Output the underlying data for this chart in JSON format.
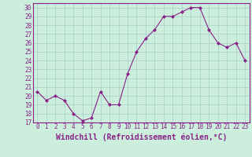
{
  "x": [
    0,
    1,
    2,
    3,
    4,
    5,
    6,
    7,
    8,
    9,
    10,
    11,
    12,
    13,
    14,
    15,
    16,
    17,
    18,
    19,
    20,
    21,
    22,
    23
  ],
  "y": [
    20.5,
    19.5,
    20.0,
    19.5,
    18.0,
    17.2,
    17.5,
    20.5,
    19.0,
    19.0,
    22.5,
    25.0,
    26.5,
    27.5,
    29.0,
    29.0,
    29.5,
    30.0,
    30.0,
    27.5,
    26.0,
    25.5,
    26.0,
    24.0
  ],
  "xlim": [
    -0.5,
    23.5
  ],
  "ylim": [
    17,
    30.5
  ],
  "yticks": [
    17,
    18,
    19,
    20,
    21,
    22,
    23,
    24,
    25,
    26,
    27,
    28,
    29,
    30
  ],
  "xticks": [
    0,
    1,
    2,
    3,
    4,
    5,
    6,
    7,
    8,
    9,
    10,
    11,
    12,
    13,
    14,
    15,
    16,
    17,
    18,
    19,
    20,
    21,
    22,
    23
  ],
  "xlabel": "Windchill (Refroidissement éolien,°C)",
  "line_color": "#882288",
  "marker": "D",
  "marker_size": 2.0,
  "bg_color": "#cceedd",
  "grid_color": "#aacccc",
  "tick_fontsize": 5.5,
  "xlabel_fontsize": 7.0,
  "linewidth": 0.8
}
